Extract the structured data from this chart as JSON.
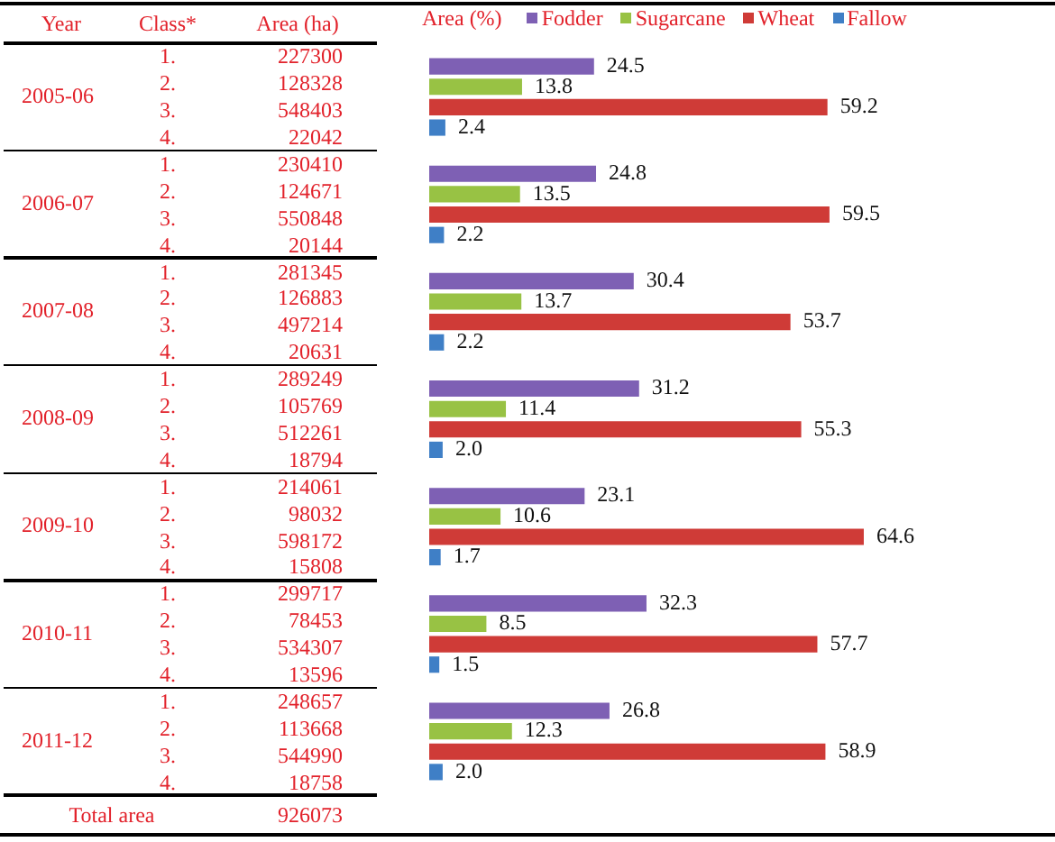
{
  "chart_data": {
    "type": "bar",
    "orientation": "horizontal",
    "ylabel": "Year",
    "legend_title": "Area (%)",
    "legend": "top",
    "tick_labels": "y",
    "categories": [
      "2005-06",
      "2006-07",
      "2007-08",
      "2008-09",
      "2009-10",
      "2010-11",
      "2011-12"
    ],
    "series": [
      {
        "name": "Fodder",
        "color": "#7e60b4",
        "values": [
          24.5,
          24.8,
          30.4,
          31.2,
          23.1,
          32.3,
          26.8
        ],
        "value_labels": [
          "24.5",
          "24.8",
          "30.4",
          "31.2",
          "23.1",
          "32.3",
          "26.8"
        ]
      },
      {
        "name": "Sugarcane",
        "color": "#98c244",
        "values": [
          13.8,
          13.5,
          13.7,
          11.4,
          10.6,
          8.5,
          12.3
        ],
        "value_labels": [
          "13.8",
          "13.5",
          "13.7",
          "11.4",
          "10.6",
          "8.5",
          "12.3"
        ]
      },
      {
        "name": "Wheat",
        "color": "#cf3b37",
        "values": [
          59.2,
          59.5,
          53.7,
          55.3,
          64.6,
          57.7,
          58.9
        ],
        "value_labels": [
          "59.2",
          "59.5",
          "53.7",
          "55.3",
          "64.6",
          "57.7",
          "58.9"
        ]
      },
      {
        "name": "Fallow",
        "color": "#3f7fc6",
        "values": [
          2.4,
          2.2,
          2.2,
          2.0,
          1.7,
          1.5,
          2.0
        ],
        "value_labels": [
          "2.4",
          "2.2",
          "2.2",
          "2.0",
          "1.7",
          "1.5",
          "2.0"
        ]
      }
    ],
    "annotations": [
      "Class*",
      "Area (ha)",
      "1.",
      "227300",
      "2.",
      "128328",
      "3.",
      "548403",
      "4.",
      "22042",
      "1.",
      "230410",
      "2.",
      "124671",
      "3.",
      "550848",
      "4.",
      "20144",
      "1.",
      "281345",
      "2.",
      "126883",
      "3.",
      "497214",
      "4.",
      "20631",
      "1.",
      "289249",
      "2.",
      "105769",
      "3.",
      "512261",
      "4.",
      "18794",
      "1.",
      "214061",
      "2.",
      "98032",
      "3.",
      "598172",
      "4.",
      "15808",
      "1.",
      "299717",
      "2.",
      "78453",
      "3.",
      "534307",
      "4.",
      "13596",
      "1.",
      "248657",
      "2.",
      "113668",
      "3.",
      "544990",
      "4.",
      "18758",
      "Total area",
      "926073"
    ]
  }
}
